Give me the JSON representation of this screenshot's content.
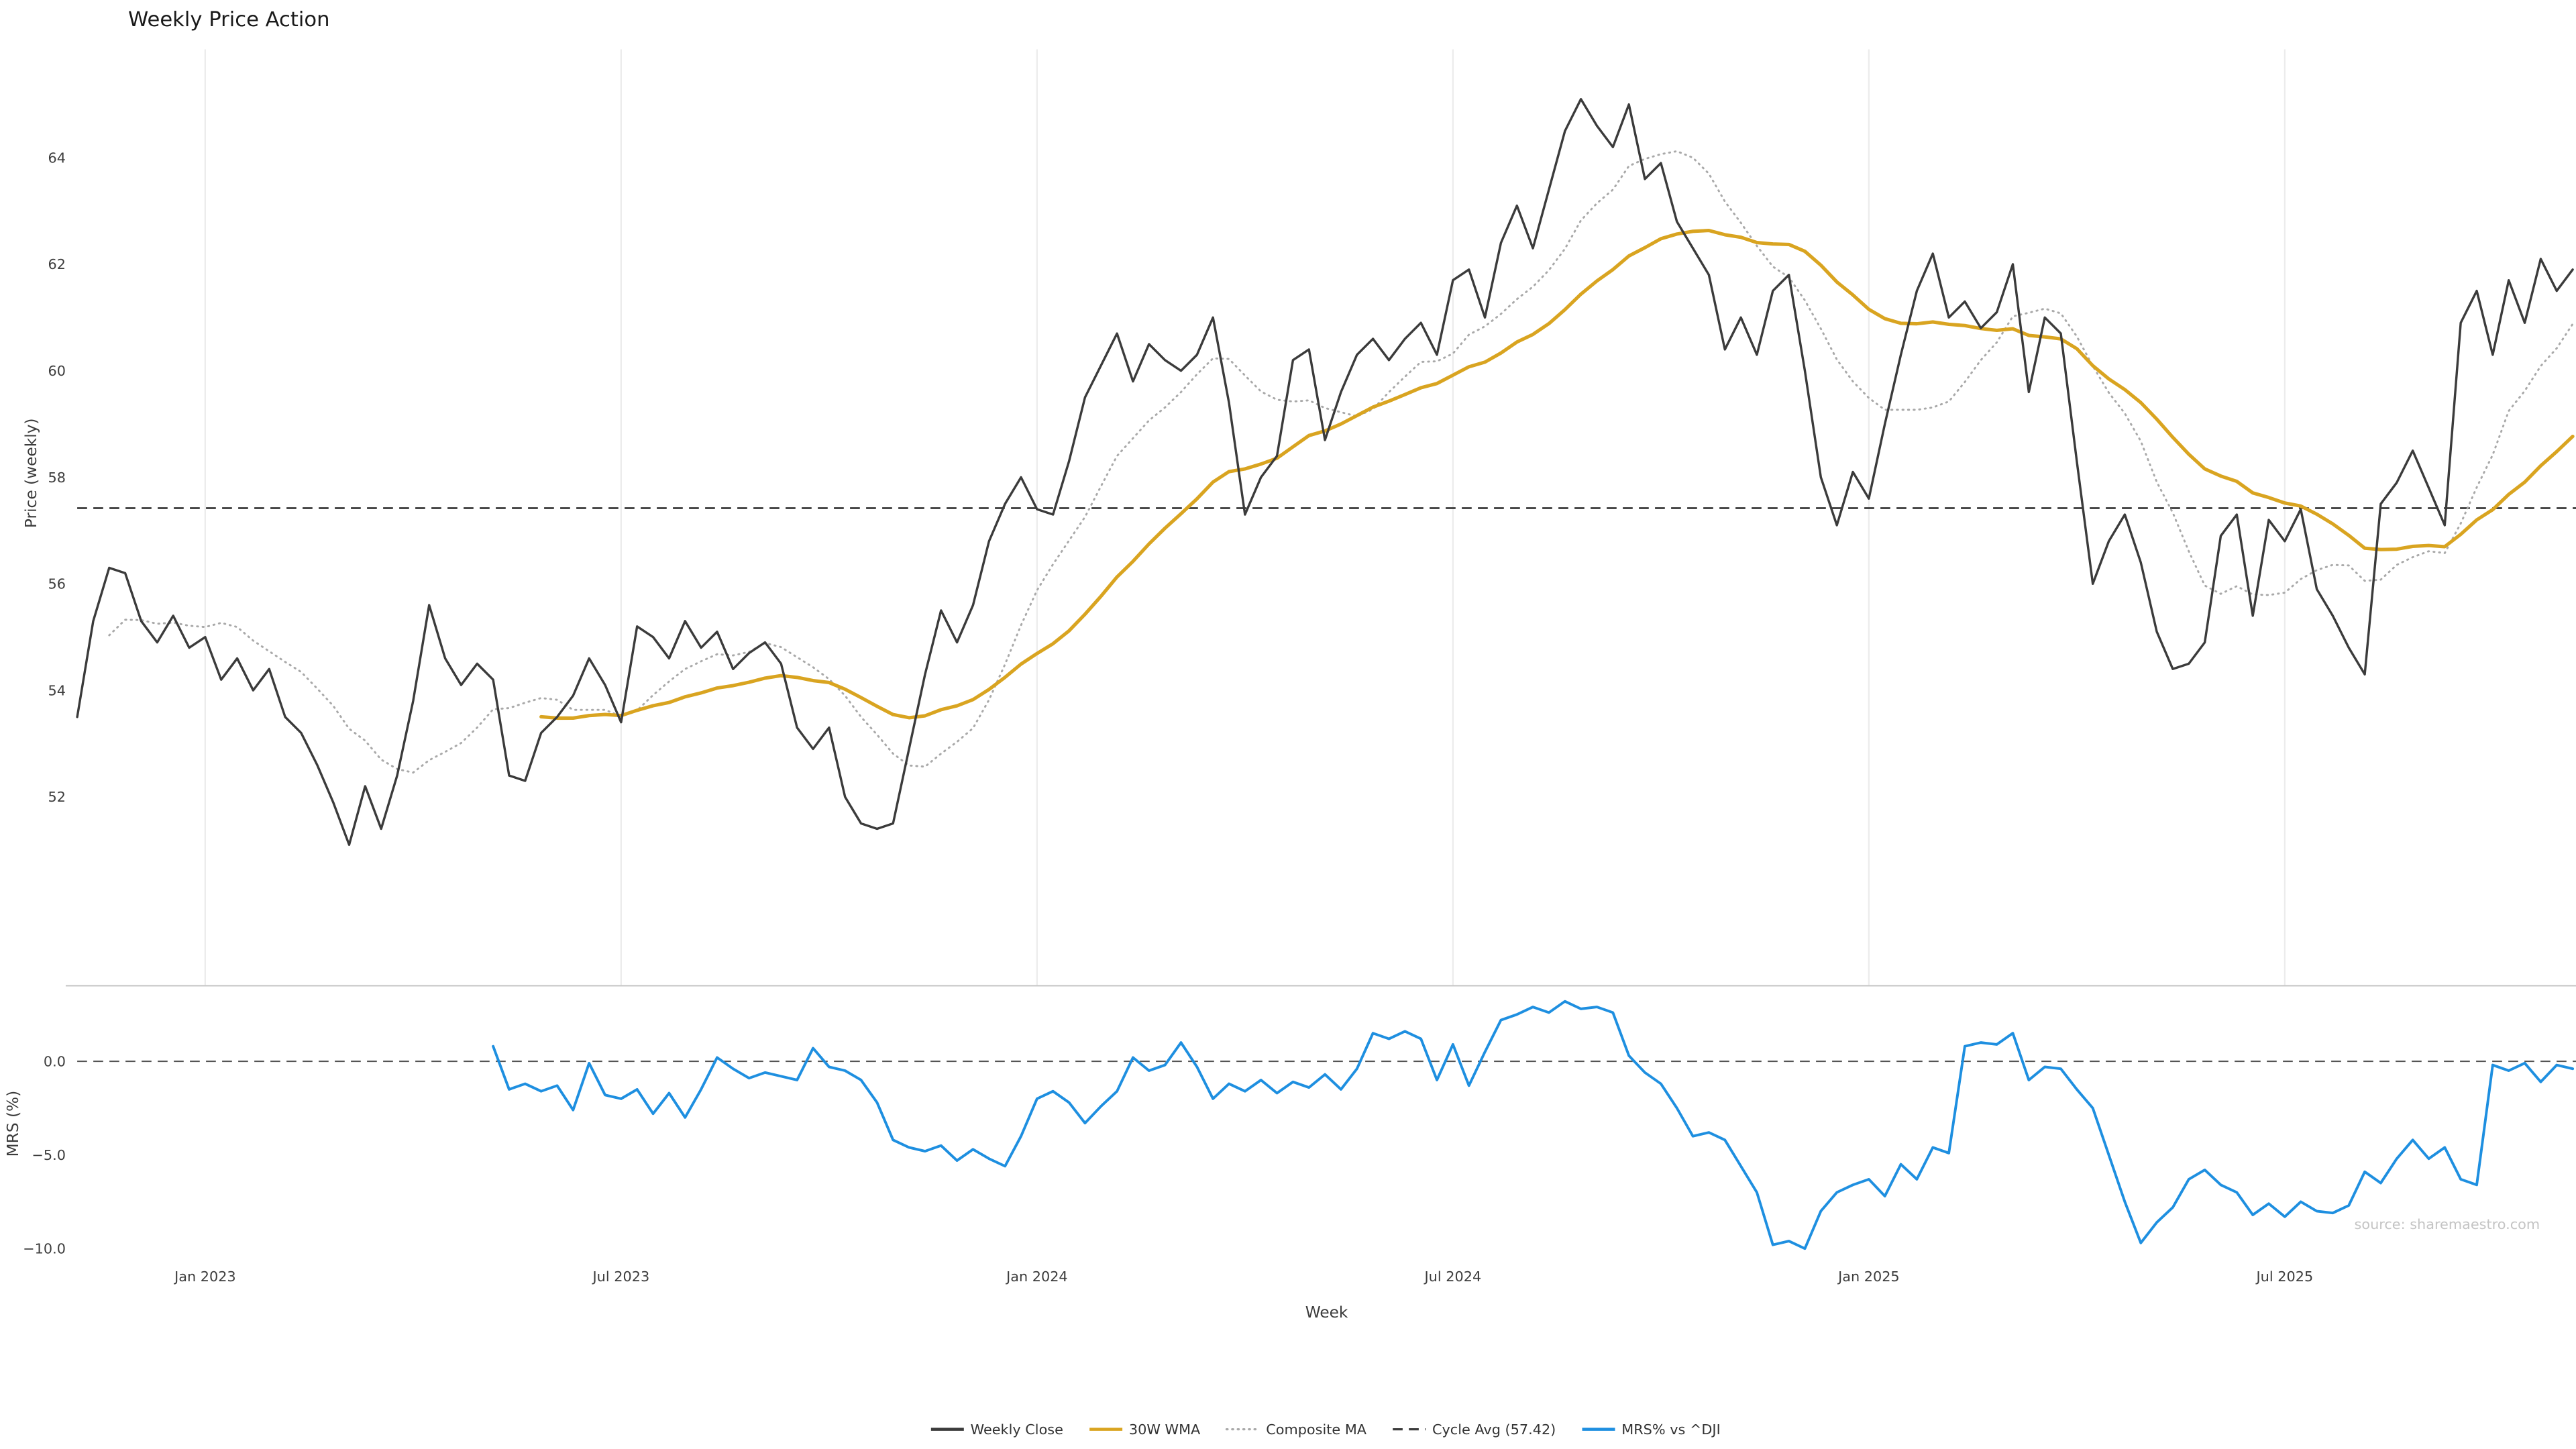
{
  "title": "Weekly Price Action",
  "source_note": "source: sharemaestro.com",
  "colors": {
    "close": "#3b3b3b",
    "wma": "#d9a420",
    "composite": "#a9a9a9",
    "cycle": "#3b3b3b",
    "mrs": "#1e8fe0",
    "zero": "#555555",
    "grid": "#ececec",
    "divider": "#c9c9c9"
  },
  "legend": {
    "items": [
      {
        "label": "Weekly Close",
        "color": "#3b3b3b",
        "style": "solid"
      },
      {
        "label": "30W WMA",
        "color": "#d9a420",
        "style": "solid"
      },
      {
        "label": "Composite MA",
        "color": "#a9a9a9",
        "style": "dotted"
      },
      {
        "label": "Cycle Avg (57.42)",
        "color": "#3b3b3b",
        "style": "dashed"
      },
      {
        "label": "MRS% vs ^DJI",
        "color": "#1e8fe0",
        "style": "solid"
      }
    ]
  },
  "chart_data": {
    "type": "line",
    "title": "Weekly Price Action",
    "xlabel": "Week",
    "n_weeks": 157,
    "x_ticks": [
      {
        "index": 8,
        "label": "Jan 2023"
      },
      {
        "index": 34,
        "label": "Jul 2023"
      },
      {
        "index": 60,
        "label": "Jan 2024"
      },
      {
        "index": 86,
        "label": "Jul 2024"
      },
      {
        "index": 112,
        "label": "Jan 2025"
      },
      {
        "index": 138,
        "label": "Jul 2025"
      }
    ],
    "panels": [
      {
        "name": "price",
        "ylabel": "Price (weekly)",
        "ylim": [
          49.7,
          66.1
        ],
        "yticks": [
          {
            "v": 52,
            "label": "52"
          },
          {
            "v": 54,
            "label": "54"
          },
          {
            "v": 56,
            "label": "56"
          },
          {
            "v": 58,
            "label": "58"
          },
          {
            "v": 60,
            "label": "60"
          },
          {
            "v": 62,
            "label": "62"
          },
          {
            "v": 64,
            "label": "64"
          }
        ],
        "series": [
          {
            "name": "Weekly Close",
            "style": "solid",
            "values": [
              53.5,
              55.3,
              56.3,
              56.2,
              55.3,
              54.9,
              55.4,
              54.8,
              55.0,
              54.2,
              54.6,
              54.0,
              54.4,
              53.5,
              53.2,
              52.6,
              51.9,
              51.1,
              52.2,
              51.4,
              52.4,
              53.8,
              55.6,
              54.6,
              54.1,
              54.5,
              54.2,
              52.4,
              52.3,
              53.2,
              53.5,
              53.9,
              54.6,
              54.1,
              53.4,
              55.2,
              55.0,
              54.6,
              55.3,
              54.8,
              55.1,
              54.4,
              54.7,
              54.9,
              54.5,
              53.3,
              52.9,
              53.3,
              52.0,
              51.5,
              51.4,
              51.5,
              52.9,
              54.3,
              55.5,
              54.9,
              55.6,
              56.8,
              57.5,
              58.0,
              57.4,
              57.3,
              58.3,
              59.5,
              60.1,
              60.7,
              59.8,
              60.5,
              60.2,
              60.0,
              60.3,
              61.0,
              59.4,
              57.3,
              58.0,
              58.4,
              60.2,
              60.4,
              58.7,
              59.6,
              60.3,
              60.6,
              60.2,
              60.6,
              60.9,
              60.3,
              61.7,
              61.9,
              61.0,
              62.4,
              63.1,
              62.3,
              63.4,
              64.5,
              65.1,
              64.6,
              64.2,
              65.0,
              63.6,
              63.9,
              62.8,
              62.3,
              61.8,
              60.4,
              61.0,
              60.3,
              61.5,
              61.8,
              60.0,
              58.0,
              57.1,
              58.1,
              57.6,
              59.0,
              60.3,
              61.5,
              62.2,
              61.0,
              61.3,
              60.8,
              61.1,
              62.0,
              59.6,
              61.0,
              60.7,
              58.3,
              56.0,
              56.8,
              57.3,
              56.4,
              55.1,
              54.4,
              54.5,
              54.9,
              56.9,
              57.3,
              55.4,
              57.2,
              56.8,
              57.4,
              55.9,
              55.4,
              54.8,
              54.3,
              57.5,
              57.9,
              58.5,
              57.8,
              57.1,
              60.9,
              61.5,
              60.3,
              61.7,
              60.9,
              62.1,
              61.5,
              61.9
            ]
          },
          {
            "name": "30W WMA",
            "style": "solid",
            "derived": {
              "method": "linear_wma",
              "window": 30,
              "source": "Weekly Close"
            }
          },
          {
            "name": "Composite MA",
            "style": "dotted",
            "derived": {
              "method": "sma",
              "window": 9,
              "min_periods": 3,
              "source": "Weekly Close"
            }
          },
          {
            "name": "Cycle Avg (57.42)",
            "style": "dashed",
            "constant": 57.42
          }
        ]
      },
      {
        "name": "mrs",
        "ylabel": "MRS (%)",
        "ylim": [
          -10.9,
          4.0
        ],
        "zero_line": true,
        "yticks": [
          {
            "v": 0,
            "label": "0.0"
          },
          {
            "v": -5,
            "label": "−5.0"
          },
          {
            "v": -10,
            "label": "−10.0"
          }
        ],
        "series": [
          {
            "name": "MRS% vs ^DJI",
            "style": "solid",
            "values": [
              null,
              null,
              null,
              null,
              null,
              null,
              null,
              null,
              null,
              null,
              null,
              null,
              null,
              null,
              null,
              null,
              null,
              null,
              null,
              null,
              null,
              null,
              null,
              null,
              null,
              null,
              0.8,
              -1.5,
              -1.2,
              -1.6,
              -1.3,
              -2.6,
              -0.1,
              -1.8,
              -2.0,
              -1.5,
              -2.8,
              -1.7,
              -3.0,
              -1.5,
              0.2,
              -0.4,
              -0.9,
              -0.6,
              -0.8,
              -1.0,
              0.7,
              -0.3,
              -0.5,
              -1.0,
              -2.2,
              -4.2,
              -4.6,
              -4.8,
              -4.5,
              -5.3,
              -4.7,
              -5.2,
              -5.6,
              -4.0,
              -2.0,
              -1.6,
              -2.2,
              -3.3,
              -2.4,
              -1.6,
              0.2,
              -0.5,
              -0.2,
              1.0,
              -0.3,
              -2.0,
              -1.2,
              -1.6,
              -1.0,
              -1.7,
              -1.1,
              -1.4,
              -0.7,
              -1.5,
              -0.4,
              1.5,
              1.2,
              1.6,
              1.2,
              -1.0,
              0.9,
              -1.3,
              0.5,
              2.2,
              2.5,
              2.9,
              2.6,
              3.2,
              2.8,
              2.9,
              2.6,
              0.3,
              -0.6,
              -1.2,
              -2.5,
              -4.0,
              -3.8,
              -4.2,
              -5.6,
              -7.0,
              -9.8,
              -9.6,
              -10.0,
              -8.0,
              -7.0,
              -6.6,
              -6.3,
              -7.2,
              -5.5,
              -6.3,
              -4.6,
              -4.9,
              0.8,
              1.0,
              0.9,
              1.5,
              -1.0,
              -0.3,
              -0.4,
              -1.5,
              -2.5,
              -5.0,
              -7.5,
              -9.7,
              -8.6,
              -7.8,
              -6.3,
              -5.8,
              -6.6,
              -7.0,
              -8.2,
              -7.6,
              -8.3,
              -7.5,
              -8.0,
              -8.1,
              -7.7,
              -5.9,
              -6.5,
              -5.2,
              -4.2,
              -5.2,
              -4.6,
              -6.3,
              -6.6,
              -0.2,
              -0.5,
              -0.1,
              -1.1,
              -0.2,
              -0.4
            ]
          }
        ]
      }
    ]
  }
}
